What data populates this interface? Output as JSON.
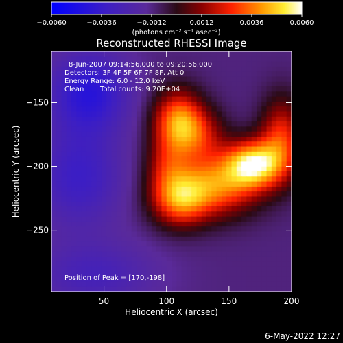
{
  "chart_data": {
    "type": "heatmap",
    "title": "Reconstructed RHESSI Image",
    "xlabel": "Heliocentric X (arcsec)",
    "ylabel": "Heliocentric Y (arcsec)",
    "xlim": [
      8,
      200
    ],
    "ylim": [
      -298,
      -110
    ],
    "x_ticks": [
      50,
      100,
      150,
      200
    ],
    "y_ticks": [
      -150,
      -200,
      -250
    ],
    "colorbar": {
      "min": -0.006,
      "max": 0.006,
      "tick_values": [
        -0.006,
        -0.0036,
        -0.0012,
        0.0012,
        0.0036,
        0.006
      ],
      "tick_labels": [
        "-0.0060",
        "-0.0036",
        "-0.0012",
        "0.0012",
        "0.0036",
        "0.0060"
      ],
      "unit_label": "(photons cm⁻² s⁻¹ asec⁻²)"
    },
    "annotations": {
      "time_range": "8-Jun-2007 09:14:56.000 to 09:20:56.000",
      "detectors": "Detectors: 3F 4F 5F 6F 7F 8F, Att 0",
      "energy": "Energy Range: 6.0 - 12.0 keV",
      "method": "Clean",
      "total_counts": "Total counts: 9.20E+04",
      "peak": "Position of Peak = [170,-198]"
    },
    "peak": [
      170,
      -198
    ],
    "sources": [
      {
        "x": 170,
        "y": -198,
        "amplitude": 0.0059,
        "sx": 16,
        "sy": 13
      },
      {
        "x": 140,
        "y": -215,
        "amplitude": 0.0045,
        "sx": 24,
        "sy": 17
      },
      {
        "x": 110,
        "y": -226,
        "amplitude": 0.0042,
        "sx": 16,
        "sy": 15
      },
      {
        "x": 192,
        "y": -178,
        "amplitude": 0.0036,
        "sx": 12,
        "sy": 22
      },
      {
        "x": 109,
        "y": -164,
        "amplitude": 0.0046,
        "sx": 14,
        "sy": 17
      },
      {
        "x": 126,
        "y": -176,
        "amplitude": 0.0026,
        "sx": 15,
        "sy": 15
      },
      {
        "x": 100,
        "y": -198,
        "amplitude": 0.0022,
        "sx": 12,
        "sy": 16
      },
      {
        "x": 38,
        "y": -142,
        "amplitude": -0.003,
        "sx": 22,
        "sy": 22
      },
      {
        "x": 30,
        "y": -208,
        "amplitude": -0.0022,
        "sx": 24,
        "sy": 28
      },
      {
        "x": 42,
        "y": -285,
        "amplitude": -0.0016,
        "sx": 34,
        "sy": 18
      }
    ],
    "background": -0.0011
  },
  "footer": {
    "date": "6-May-2022 12:27"
  }
}
